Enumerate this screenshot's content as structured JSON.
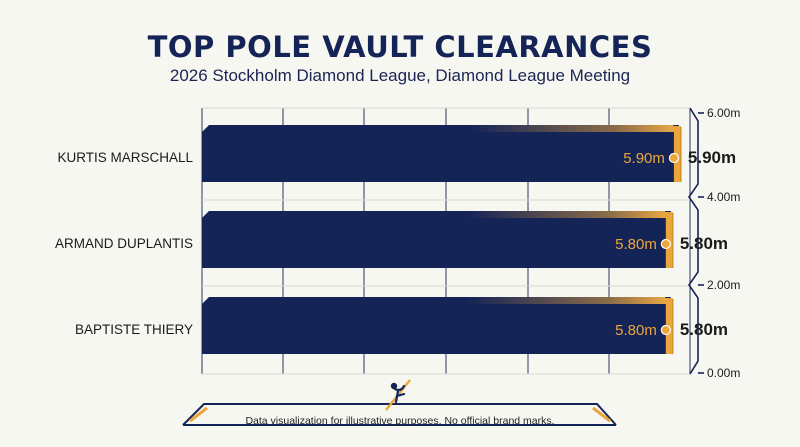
{
  "chart_data": {
    "type": "bar",
    "orientation": "horizontal",
    "title": "TOP POLE VAULT CLEARANCES",
    "subtitle": "2026 Stockholm Diamond League, Diamond League Meeting",
    "categories": [
      "KURTIS MARSCHALL",
      "ARMAND DUPLANTIS",
      "BAPTISTE THIERY"
    ],
    "values": [
      5.9,
      5.8,
      5.8
    ],
    "value_labels": [
      "5.90m",
      "5.80m",
      "5.80m"
    ],
    "unit": "m",
    "secondary_axis": {
      "position": "right",
      "ticks": [
        "6.00m",
        "4.00m",
        "2.00m",
        "0.00m"
      ],
      "range": [
        0,
        6
      ]
    },
    "grid": true
  },
  "footnote": "Data visualization for illustrative purposes. No official brand marks.",
  "colors": {
    "navy": "#152457",
    "accent": "#eba63b",
    "text": "#1b1b1b"
  },
  "icons": [
    "pole-vaulter-icon"
  ]
}
